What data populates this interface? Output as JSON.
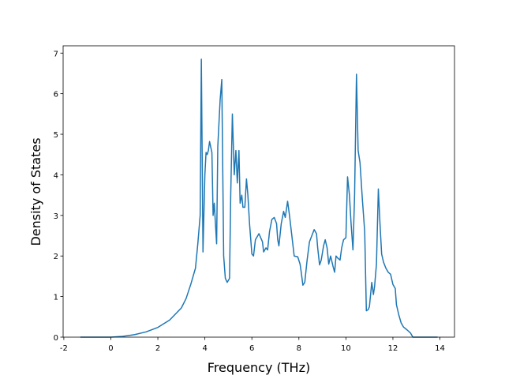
{
  "chart_data": {
    "type": "line",
    "xlabel": "Frequency (THz)",
    "ylabel": "Density of States",
    "x": [
      -1.3,
      0,
      0.5,
      1,
      1.5,
      2,
      2.5,
      3,
      3.2,
      3.4,
      3.6,
      3.7,
      3.8,
      3.85,
      3.92,
      4.0,
      4.05,
      4.1,
      4.15,
      4.2,
      4.3,
      4.35,
      4.4,
      4.5,
      4.55,
      4.65,
      4.72,
      4.8,
      4.87,
      4.95,
      5.05,
      5.1,
      5.17,
      5.25,
      5.32,
      5.38,
      5.45,
      5.5,
      5.57,
      5.62,
      5.7,
      5.77,
      5.83,
      5.9,
      6.0,
      6.07,
      6.15,
      6.3,
      6.45,
      6.5,
      6.6,
      6.67,
      6.75,
      6.85,
      6.95,
      7.05,
      7.1,
      7.15,
      7.25,
      7.35,
      7.42,
      7.52,
      7.6,
      7.7,
      7.8,
      7.95,
      8.05,
      8.1,
      8.17,
      8.25,
      8.35,
      8.45,
      8.55,
      8.65,
      8.75,
      8.8,
      8.88,
      8.95,
      9.05,
      9.12,
      9.2,
      9.27,
      9.35,
      9.45,
      9.52,
      9.58,
      9.65,
      9.75,
      9.82,
      9.9,
      10.0,
      10.07,
      10.15,
      10.22,
      10.3,
      10.37,
      10.45,
      10.52,
      10.6,
      10.7,
      10.8,
      10.87,
      10.95,
      11.0,
      11.1,
      11.17,
      11.22,
      11.3,
      11.38,
      11.45,
      11.52,
      11.6,
      11.7,
      11.8,
      11.9,
      12.0,
      12.1,
      12.15,
      12.25,
      12.35,
      12.45,
      12.6,
      12.75,
      12.85,
      13.9
    ],
    "series": [
      {
        "name": "DOS",
        "color": "#1f77b4",
        "values": [
          0,
          0,
          0.02,
          0.06,
          0.13,
          0.24,
          0.42,
          0.72,
          0.95,
          1.3,
          1.7,
          2.3,
          3.0,
          6.85,
          2.1,
          4.0,
          4.55,
          4.5,
          4.6,
          4.82,
          4.55,
          3.0,
          3.3,
          2.3,
          4.7,
          5.85,
          6.35,
          2.0,
          1.45,
          1.35,
          1.45,
          3.5,
          5.5,
          4.0,
          4.6,
          3.8,
          4.6,
          3.3,
          3.5,
          3.2,
          3.2,
          3.9,
          3.5,
          2.8,
          2.05,
          2.0,
          2.4,
          2.55,
          2.35,
          2.1,
          2.2,
          2.15,
          2.6,
          2.9,
          2.95,
          2.8,
          2.4,
          2.25,
          2.8,
          3.1,
          2.95,
          3.35,
          3.0,
          2.5,
          2.0,
          1.98,
          1.8,
          1.6,
          1.28,
          1.35,
          1.9,
          2.35,
          2.5,
          2.65,
          2.55,
          2.2,
          1.78,
          1.9,
          2.25,
          2.4,
          2.2,
          1.8,
          2.0,
          1.75,
          1.6,
          2.0,
          1.95,
          1.9,
          2.2,
          2.4,
          2.45,
          3.95,
          3.5,
          2.8,
          2.15,
          3.5,
          6.48,
          4.6,
          4.3,
          3.4,
          2.6,
          0.65,
          0.68,
          0.75,
          1.35,
          1.05,
          1.25,
          1.8,
          3.65,
          2.8,
          2.05,
          1.85,
          1.7,
          1.6,
          1.55,
          1.3,
          1.2,
          0.8,
          0.55,
          0.35,
          0.25,
          0.18,
          0.1,
          0,
          0
        ]
      }
    ],
    "xlim": [
      -2.03,
      14.62
    ],
    "ylim": [
      0,
      7.18
    ],
    "xticks": [
      -2,
      0,
      2,
      4,
      6,
      8,
      10,
      12,
      14
    ],
    "yticks": [
      0,
      1,
      2,
      3,
      4,
      5,
      6,
      7
    ]
  }
}
